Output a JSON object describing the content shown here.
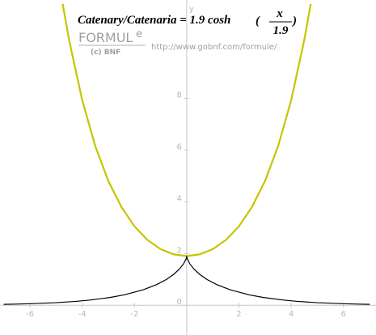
{
  "chart_data": {
    "type": "line",
    "title": {
      "text": "Catenary/Catenaria = 1.9 cosh",
      "numerator": "x",
      "denominator": "1.9"
    },
    "logo": {
      "main": "FORMUL",
      "sup": "e",
      "sub": "(c) BNF"
    },
    "url": "http://www.gobnf.com/formule/",
    "y_label": "y",
    "xlim": [
      -7.15,
      7.25
    ],
    "ylim": [
      -1.15,
      11.8
    ],
    "xticks": [
      -6,
      -4,
      -2,
      2,
      4,
      6
    ],
    "yticks": [
      0,
      2,
      4,
      6,
      8
    ],
    "series": [
      {
        "color": "#c8c400",
        "x": [
          -4.75,
          -4.5,
          -4,
          -3.5,
          -3,
          -2.5,
          -2,
          -1.5,
          -1,
          -0.5,
          0,
          0.5,
          1,
          1.5,
          2,
          2.5,
          3,
          3.5,
          4,
          4.5,
          4.75
        ],
        "values": [
          11.65,
          10.24,
          7.92,
          6.15,
          4.8,
          3.8,
          3.05,
          2.52,
          2.17,
          1.97,
          1.9,
          1.97,
          2.17,
          2.52,
          3.05,
          3.8,
          4.8,
          6.15,
          7.92,
          10.24,
          11.65
        ]
      },
      {
        "color": "#000000",
        "x": [
          -7.01,
          -6.53,
          -5.98,
          -5.01,
          -4.24,
          -3.7,
          -2.94,
          -2.4,
          -1.66,
          -1.15,
          -0.77,
          -0.49,
          -0.28,
          -0.12,
          -0.02,
          0,
          0.02,
          0.12,
          0.28,
          0.49,
          0.77,
          1.15,
          1.66,
          2.4,
          2.94,
          3.7,
          4.24,
          5.01,
          5.98,
          6.53,
          7.01
        ],
        "values": [
          0.035,
          0.045,
          0.06,
          0.1,
          0.15,
          0.2,
          0.3,
          0.4,
          0.6,
          0.8,
          1,
          1.2,
          1.4,
          1.6,
          1.8,
          1.9,
          1.8,
          1.6,
          1.4,
          1.2,
          1,
          0.8,
          0.6,
          0.4,
          0.3,
          0.2,
          0.15,
          0.1,
          0.06,
          0.045,
          0.035
        ]
      }
    ]
  }
}
